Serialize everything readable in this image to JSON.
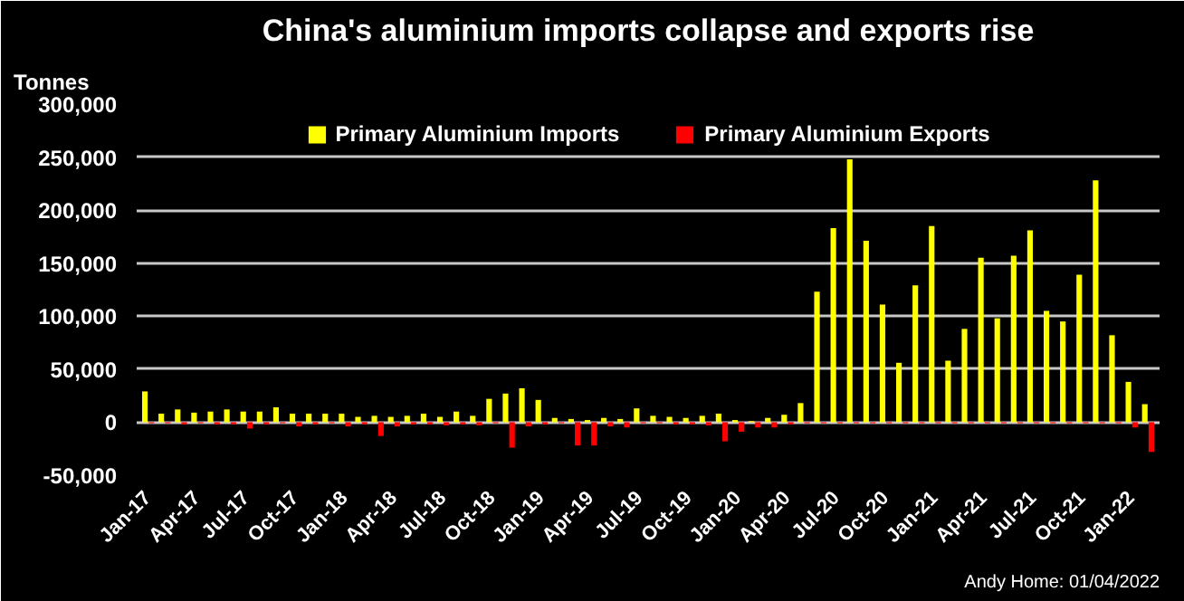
{
  "chart_data": {
    "type": "bar",
    "title": "China's aluminium imports collapse and exports rise",
    "ylabel": "Tonnes",
    "categories": [
      "Jan-17",
      null,
      null,
      "Apr-17",
      null,
      null,
      "Jul-17",
      null,
      null,
      "Oct-17",
      null,
      null,
      "Jan-18",
      null,
      null,
      "Apr-18",
      null,
      null,
      "Jul-18",
      null,
      null,
      "Oct-18",
      null,
      null,
      "Jan-19",
      null,
      null,
      "Apr-19",
      null,
      null,
      "Jul-19",
      null,
      null,
      "Oct-19",
      null,
      null,
      "Jan-20",
      null,
      null,
      "Apr-20",
      null,
      null,
      "Jul-20",
      null,
      null,
      "Oct-20",
      null,
      null,
      "Jan-21",
      null,
      null,
      "Apr-21",
      null,
      null,
      "Jul-21",
      null,
      null,
      "Oct-21",
      null,
      null,
      "Jan-22",
      null
    ],
    "series": [
      {
        "name": "Primary Aluminium Imports",
        "color": "#ffff00",
        "values": [
          29000,
          8000,
          12000,
          9000,
          10000,
          12000,
          10000,
          10000,
          14000,
          8000,
          8000,
          8000,
          8000,
          5000,
          6000,
          5000,
          6000,
          8000,
          5000,
          10000,
          6000,
          22000,
          27000,
          32000,
          21000,
          4000,
          3000,
          2000,
          4000,
          3000,
          13000,
          6000,
          5000,
          4000,
          6000,
          8000,
          2000,
          1000,
          4000,
          7000,
          18000,
          123000,
          183000,
          248000,
          171000,
          111000,
          56000,
          129000,
          185000,
          58000,
          88000,
          155000,
          98000,
          157000,
          181000,
          105000,
          95000,
          139000,
          228000,
          82000,
          38000,
          17000
        ]
      },
      {
        "name": "Primary Aluminium Exports",
        "color": "#ff0000",
        "values": [
          -1000,
          -1000,
          -2000,
          -1000,
          -2000,
          -2000,
          -6000,
          -2000,
          -1000,
          -4000,
          -2000,
          -1000,
          -4000,
          -2000,
          -13000,
          -4000,
          -2000,
          -2000,
          -3000,
          -2000,
          -3000,
          -1000,
          -24000,
          -4000,
          -2000,
          -1000,
          -22000,
          -22000,
          -4000,
          -5000,
          -1000,
          -1000,
          -2000,
          -2000,
          -3000,
          -18000,
          -9000,
          -5000,
          -5000,
          -2000,
          -1000,
          -1000,
          -1000,
          -1000,
          -1000,
          -1000,
          -1000,
          -1000,
          -1000,
          -1000,
          -1000,
          -1000,
          -1000,
          -1000,
          -1000,
          -1000,
          -1000,
          -1000,
          -1000,
          -1000,
          -5000,
          -28000
        ]
      }
    ],
    "ylim": [
      -50000,
      300000
    ],
    "yticks": [
      {
        "value": -50000,
        "label": "-50,000"
      },
      {
        "value": 0,
        "label": "0"
      },
      {
        "value": 50000,
        "label": "50,000"
      },
      {
        "value": 100000,
        "label": "100,000"
      },
      {
        "value": 150000,
        "label": "150,000"
      },
      {
        "value": 200000,
        "label": "200,000"
      },
      {
        "value": 250000,
        "label": "250,000"
      },
      {
        "value": 300000,
        "label": "300,000"
      }
    ],
    "grid": "y",
    "legend": "top",
    "annotations": [
      "Andy Home: 01/04/2022"
    ]
  }
}
